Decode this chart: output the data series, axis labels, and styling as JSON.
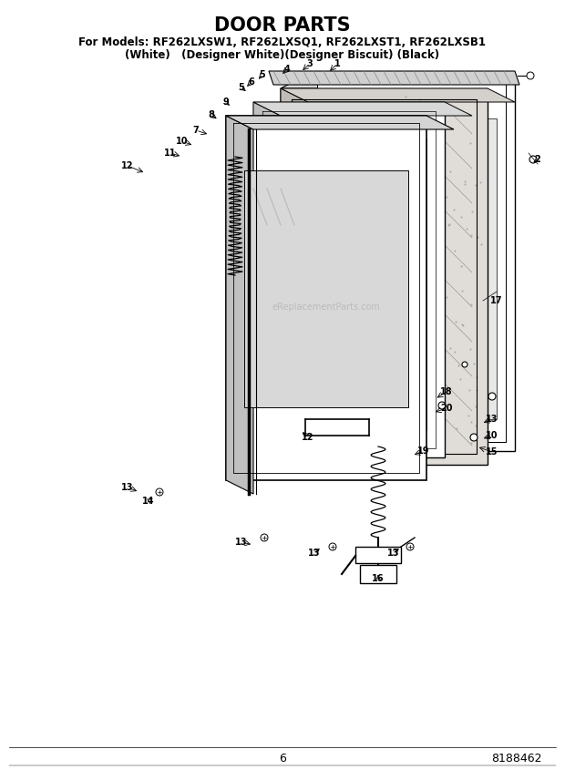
{
  "title": "DOOR PARTS",
  "subtitle1": "For Models: RF262LXSW1, RF262LXSQ1, RF262LXST1, RF262LXSB1",
  "subtitle2": "(White)   (Designer White)(Designer Biscuit) (Black)",
  "page_number": "6",
  "part_number": "8188462",
  "background_color": "#ffffff",
  "line_color": "#000000",
  "watermark_text": "eReplacementParts.com",
  "watermark_color": "#b0b0b0",
  "title_fontsize": 15,
  "subtitle_fontsize": 8.5
}
